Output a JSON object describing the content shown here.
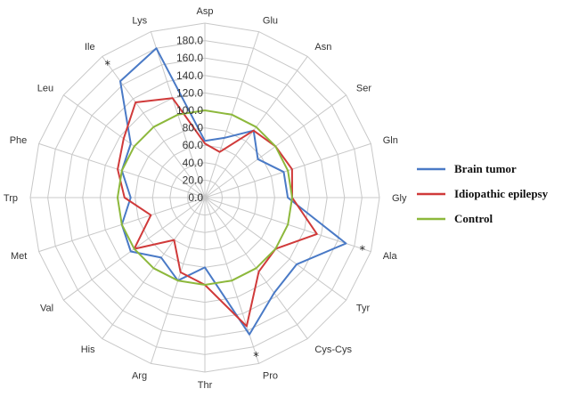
{
  "chart_data": {
    "type": "radar",
    "title": "",
    "categories": [
      "Asp",
      "Glu",
      "Asn",
      "Ser",
      "Gln",
      "Gly",
      "Ala",
      "Tyr",
      "Cys-Cys",
      "Pro",
      "Thr",
      "Arg",
      "His",
      "Val",
      "Met",
      "Trp",
      "Phe",
      "Leu",
      "Ile",
      "Lys"
    ],
    "radial_ticks": [
      "0.0",
      "20.0",
      "40.0",
      "60.0",
      "80.0",
      "100.0",
      "120.0",
      "140.0",
      "160.0",
      "180.0"
    ],
    "rlim": [
      0,
      180
    ],
    "grid": true,
    "legend_position": "right",
    "series": [
      {
        "name": "Brain tumor",
        "color": "#4a7ac6",
        "values": [
          65,
          72,
          95,
          75,
          95,
          95,
          170,
          130,
          135,
          165,
          80,
          100,
          85,
          105,
          100,
          85,
          100,
          105,
          165,
          180
        ]
      },
      {
        "name": "Idiopathic epilepsy",
        "color": "#d03a3a",
        "values": [
          62,
          55,
          95,
          100,
          105,
          100,
          135,
          100,
          105,
          155,
          100,
          90,
          60,
          100,
          65,
          92,
          105,
          115,
          135,
          120
        ]
      },
      {
        "name": "Control",
        "color": "#8db83c",
        "values": [
          100,
          100,
          100,
          100,
          100,
          100,
          100,
          100,
          100,
          100,
          100,
          100,
          100,
          100,
          100,
          100,
          100,
          100,
          100,
          100
        ]
      }
    ],
    "annotations": [
      {
        "text": "*",
        "category": "Ile"
      },
      {
        "text": "*",
        "category": "Ala"
      },
      {
        "text": "*",
        "category": "Pro"
      }
    ]
  }
}
